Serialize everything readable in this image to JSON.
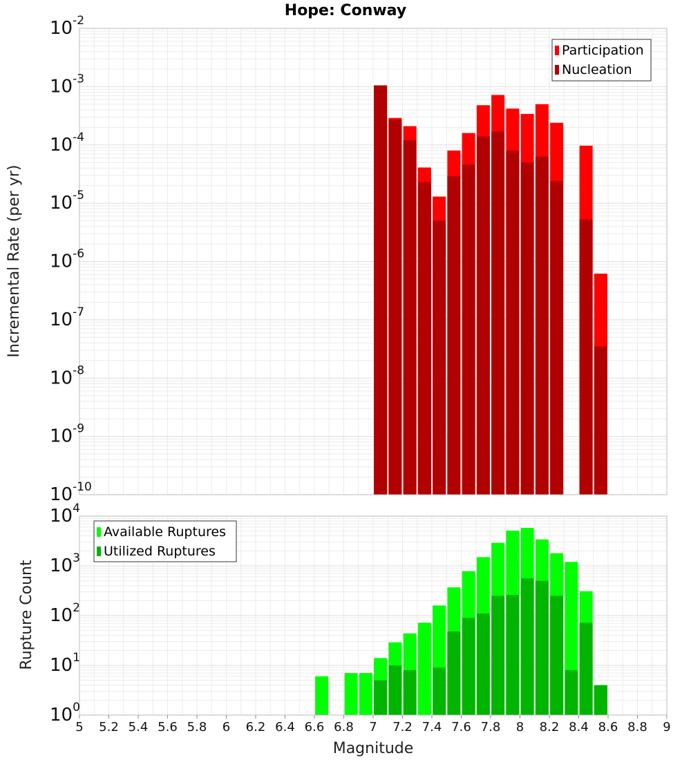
{
  "title": "Hope: Conway",
  "x_axis": {
    "label": "Magnitude",
    "range": [
      5,
      9
    ],
    "ticks": [
      "5",
      "5.2",
      "5.4",
      "5.6",
      "5.8",
      "6",
      "6.2",
      "6.4",
      "6.6",
      "6.8",
      "7",
      "7.2",
      "7.4",
      "7.6",
      "7.8",
      "8",
      "8.2",
      "8.4",
      "8.6",
      "8.8",
      "9"
    ]
  },
  "colors": {
    "participation": "#ff0000",
    "nucleation": "#b00000",
    "available": "#00ff00",
    "utilized": "#00b400",
    "grid": "#ebebeb",
    "frame": "#bbbbbb"
  },
  "chart_data": [
    {
      "type": "bar",
      "scale": "log",
      "ylabel": "Incremental Rate (per yr)",
      "ylim": [
        1e-10,
        0.01
      ],
      "y_ticks": [
        "10^-10",
        "10^-9",
        "10^-8",
        "10^-7",
        "10^-6",
        "10^-5",
        "10^-4",
        "10^-3",
        "10^-2"
      ],
      "grid": true,
      "legend_position": "top-right",
      "x": [
        7.05,
        7.15,
        7.25,
        7.35,
        7.45,
        7.55,
        7.65,
        7.75,
        7.85,
        7.95,
        8.05,
        8.15,
        8.25,
        8.35,
        8.45,
        8.55
      ],
      "series": [
        {
          "name": "Participation",
          "values": [
            0.00105,
            0.00029,
            0.00021,
            4.1e-05,
            1.3e-05,
            8e-05,
            0.00016,
            0.00048,
            0.00072,
            0.00042,
            0.00034,
            0.0005,
            0.00024,
            1e-10,
            9.7e-05,
            6.2e-07
          ]
        },
        {
          "name": "Nucleation",
          "values": [
            0.00105,
            0.00027,
            0.00012,
            2.3e-05,
            5e-06,
            2.9e-05,
            4.6e-05,
            0.00014,
            0.00017,
            8e-05,
            5e-05,
            6.3e-05,
            2.4e-05,
            1e-10,
            5.3e-06,
            3.5e-08
          ]
        }
      ]
    },
    {
      "type": "bar",
      "scale": "log",
      "ylabel": "Rupture Count",
      "ylim": [
        1,
        10000
      ],
      "y_ticks": [
        "10^0",
        "10^1",
        "10^2",
        "10^3",
        "10^4"
      ],
      "grid": true,
      "legend_position": "top-left",
      "x": [
        6.65,
        6.85,
        6.95,
        7.05,
        7.15,
        7.25,
        7.35,
        7.45,
        7.55,
        7.65,
        7.75,
        7.85,
        7.95,
        8.05,
        8.15,
        8.25,
        8.35,
        8.45,
        8.55
      ],
      "series": [
        {
          "name": "Available Ruptures",
          "values": [
            6,
            7,
            7,
            14,
            29,
            44,
            72,
            160,
            370,
            780,
            1500,
            2900,
            5100,
            5800,
            3400,
            1800,
            1200,
            310,
            4
          ]
        },
        {
          "name": "Utilized Ruptures",
          "values": [
            0,
            0,
            0,
            5,
            10,
            8,
            0,
            9,
            48,
            90,
            110,
            250,
            260,
            560,
            500,
            250,
            8,
            72,
            4
          ]
        }
      ]
    }
  ]
}
